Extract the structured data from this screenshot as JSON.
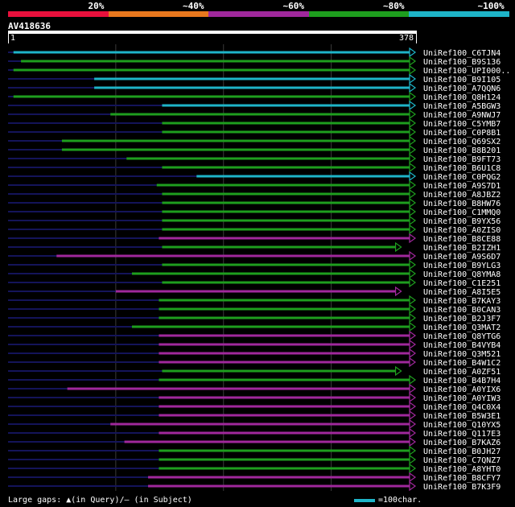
{
  "query": {
    "id": "AV418636",
    "start": "1",
    "end": "378"
  },
  "legend": [
    {
      "label": "20%",
      "color": "#e8103c"
    },
    {
      "label": "~40%",
      "color": "#e8781e"
    },
    {
      "label": "~60%",
      "color": "#a0289c"
    },
    {
      "label": "~80%",
      "color": "#1e9e1e"
    },
    {
      "label": "~100%",
      "color": "#1eb4c8"
    }
  ],
  "footer": {
    "gaps_text": "Large gaps: ▲(in Query)/— (in Subject)",
    "scale_text": "=100char.",
    "scale_color": "#1eb4c8"
  },
  "colors": {
    "cyan": "#1eb4c8",
    "green": "#1e9e1e",
    "purple": "#a0289c",
    "dark": "#14145a"
  },
  "hits": [
    {
      "name": "UniRef100_C6TJN4",
      "start": 5,
      "end": 378,
      "color": "cyan"
    },
    {
      "name": "UniRef100_B9S136",
      "start": 12,
      "end": 378,
      "color": "green"
    },
    {
      "name": "UniRef100_UPI000..",
      "start": 5,
      "end": 378,
      "color": "green"
    },
    {
      "name": "UniRef100_B9I105",
      "start": 80,
      "end": 378,
      "color": "cyan"
    },
    {
      "name": "UniRef100_A7QQN6",
      "start": 80,
      "end": 378,
      "color": "cyan"
    },
    {
      "name": "UniRef100_Q8H124",
      "start": 5,
      "end": 378,
      "color": "green"
    },
    {
      "name": "UniRef100_A5BGW3",
      "start": 143,
      "end": 378,
      "color": "cyan"
    },
    {
      "name": "UniRef100_A9NWJ7",
      "start": 95,
      "end": 378,
      "color": "green"
    },
    {
      "name": "UniRef100_C5YMB7",
      "start": 143,
      "end": 378,
      "color": "green"
    },
    {
      "name": "UniRef100_C0P8B1",
      "start": 143,
      "end": 378,
      "color": "green"
    },
    {
      "name": "UniRef100_Q69SX2",
      "start": 50,
      "end": 378,
      "color": "green"
    },
    {
      "name": "UniRef100_B8B201",
      "start": 50,
      "end": 378,
      "color": "green"
    },
    {
      "name": "UniRef100_B9FT73",
      "start": 110,
      "end": 378,
      "color": "green"
    },
    {
      "name": "UniRef100_B6U1C8",
      "start": 143,
      "end": 378,
      "color": "green"
    },
    {
      "name": "UniRef100_C0PQG2",
      "start": 175,
      "end": 378,
      "color": "cyan"
    },
    {
      "name": "UniRef100_A9S7D1",
      "start": 138,
      "end": 378,
      "color": "green"
    },
    {
      "name": "UniRef100_A8JBZ2",
      "start": 143,
      "end": 378,
      "color": "green"
    },
    {
      "name": "UniRef100_B8HW76",
      "start": 143,
      "end": 378,
      "color": "green"
    },
    {
      "name": "UniRef100_C1MMQ0",
      "start": 143,
      "end": 378,
      "color": "green"
    },
    {
      "name": "UniRef100_B9YX56",
      "start": 143,
      "end": 378,
      "color": "green"
    },
    {
      "name": "UniRef100_A0ZIS0",
      "start": 143,
      "end": 378,
      "color": "green"
    },
    {
      "name": "UniRef100_B8CE88",
      "start": 140,
      "end": 378,
      "color": "purple"
    },
    {
      "name": "UniRef100_B2IZH1",
      "start": 143,
      "end": 365,
      "color": "green"
    },
    {
      "name": "UniRef100_A9S6D7",
      "start": 45,
      "end": 378,
      "color": "purple"
    },
    {
      "name": "UniRef100_B9YLG3",
      "start": 143,
      "end": 378,
      "color": "green"
    },
    {
      "name": "UniRef100_Q8YMA8",
      "start": 115,
      "end": 378,
      "color": "green"
    },
    {
      "name": "UniRef100_C1E251",
      "start": 143,
      "end": 378,
      "color": "green"
    },
    {
      "name": "UniRef100_A8I5E5",
      "start": 100,
      "end": 365,
      "color": "purple"
    },
    {
      "name": "UniRef100_B7KAY3",
      "start": 140,
      "end": 378,
      "color": "green"
    },
    {
      "name": "UniRef100_B0CAN3",
      "start": 140,
      "end": 378,
      "color": "green"
    },
    {
      "name": "UniRef100_B2J3F7",
      "start": 140,
      "end": 378,
      "color": "green"
    },
    {
      "name": "UniRef100_Q3MAT2",
      "start": 115,
      "end": 378,
      "color": "green"
    },
    {
      "name": "UniRef100_Q8YTG6",
      "start": 140,
      "end": 378,
      "color": "purple"
    },
    {
      "name": "UniRef100_B4VYB4",
      "start": 140,
      "end": 378,
      "color": "purple"
    },
    {
      "name": "UniRef100_Q3M521",
      "start": 140,
      "end": 378,
      "color": "purple"
    },
    {
      "name": "UniRef100_B4W1C2",
      "start": 140,
      "end": 378,
      "color": "purple"
    },
    {
      "name": "UniRef100_A0ZF51",
      "start": 143,
      "end": 365,
      "color": "green"
    },
    {
      "name": "UniRef100_B4B7H4",
      "start": 140,
      "end": 378,
      "color": "green"
    },
    {
      "name": "UniRef100_A0YIX6",
      "start": 55,
      "end": 378,
      "color": "purple"
    },
    {
      "name": "UniRef100_A0YIW3",
      "start": 140,
      "end": 378,
      "color": "purple"
    },
    {
      "name": "UniRef100_Q4C0X4",
      "start": 140,
      "end": 378,
      "color": "purple"
    },
    {
      "name": "UniRef100_B5W3E1",
      "start": 140,
      "end": 378,
      "color": "purple"
    },
    {
      "name": "UniRef100_Q10YX5",
      "start": 95,
      "end": 378,
      "color": "purple"
    },
    {
      "name": "UniRef100_Q117E3",
      "start": 140,
      "end": 378,
      "color": "purple"
    },
    {
      "name": "UniRef100_B7KAZ6",
      "start": 108,
      "end": 378,
      "color": "purple"
    },
    {
      "name": "UniRef100_B0JH27",
      "start": 140,
      "end": 378,
      "color": "green"
    },
    {
      "name": "UniRef100_C7QNZ7",
      "start": 140,
      "end": 378,
      "color": "green"
    },
    {
      "name": "UniRef100_A8YHT0",
      "start": 140,
      "end": 378,
      "color": "green"
    },
    {
      "name": "UniRef100_B8CFY7",
      "start": 130,
      "end": 378,
      "color": "purple"
    },
    {
      "name": "UniRef100_B7K3F9",
      "start": 130,
      "end": 378,
      "color": "purple"
    }
  ]
}
